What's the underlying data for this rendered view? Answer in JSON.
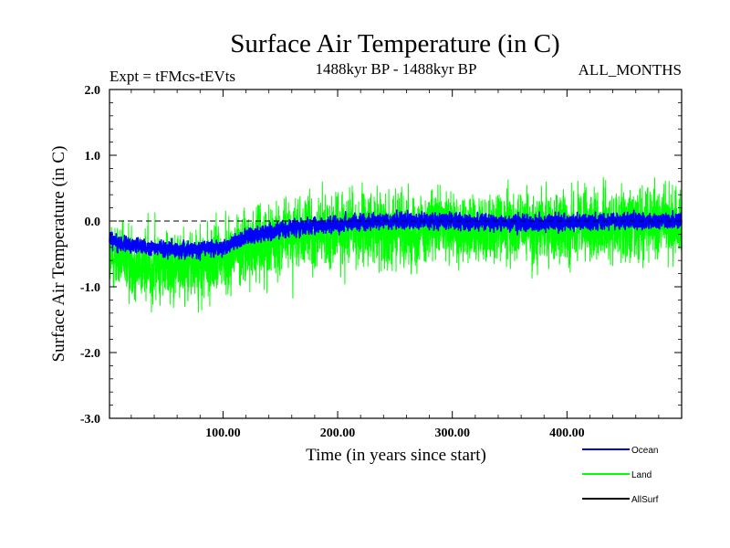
{
  "chart_data": {
    "type": "line",
    "title": "Surface Air Temperature (in C)",
    "subtitle_left": "Expt = tFMcs-tEVts",
    "subtitle_center": "1488kyr BP - 1488kyr BP",
    "subtitle_right": "ALL_MONTHS",
    "xlabel": "Time (in years since start)",
    "ylabel": "Surface Air Temperature (in C)",
    "xlim": [
      1,
      500
    ],
    "ylim": [
      -3.0,
      2.0
    ],
    "x_ticks": [
      {
        "value": 100,
        "label": "100.00"
      },
      {
        "value": 200,
        "label": "200.00"
      },
      {
        "value": 300,
        "label": "300.00"
      },
      {
        "value": 400,
        "label": "400.00"
      }
    ],
    "y_ticks": [
      {
        "value": 2.0,
        "label": "2.0"
      },
      {
        "value": 1.0,
        "label": "1.0"
      },
      {
        "value": 0.0,
        "label": "0.0"
      },
      {
        "value": -1.0,
        "label": "-1.0"
      },
      {
        "value": -2.0,
        "label": "-2.0"
      },
      {
        "value": -3.0,
        "label": "-3.0"
      }
    ],
    "reference_line": 0.0,
    "samples_per_year": 12,
    "series": [
      {
        "name": "Land",
        "color": "#00ff00",
        "noise_std": 0.5,
        "trend_x": [
          1,
          20,
          40,
          60,
          80,
          100,
          120,
          150,
          180,
          200,
          250,
          300,
          350,
          400,
          450,
          500
        ],
        "trend_y": [
          -0.55,
          -0.65,
          -0.7,
          -0.65,
          -0.7,
          -0.55,
          -0.4,
          -0.25,
          -0.2,
          -0.15,
          -0.1,
          -0.1,
          -0.1,
          -0.1,
          -0.05,
          -0.05
        ]
      },
      {
        "name": "Ocean",
        "color": "#0000ff",
        "noise_std": 0.11,
        "trend_x": [
          1,
          20,
          40,
          60,
          80,
          100,
          120,
          150,
          180,
          200,
          250,
          300,
          350,
          400,
          450,
          500
        ],
        "trend_y": [
          -0.28,
          -0.38,
          -0.42,
          -0.45,
          -0.42,
          -0.4,
          -0.25,
          -0.12,
          -0.08,
          -0.05,
          0.0,
          0.0,
          -0.03,
          -0.02,
          0.0,
          0.0
        ]
      }
    ],
    "legend": [
      {
        "name": "Ocean",
        "color": "#0000ff"
      },
      {
        "name": "Land",
        "color": "#00ff00"
      },
      {
        "name": "AllSurf",
        "color": "#000000"
      }
    ]
  }
}
